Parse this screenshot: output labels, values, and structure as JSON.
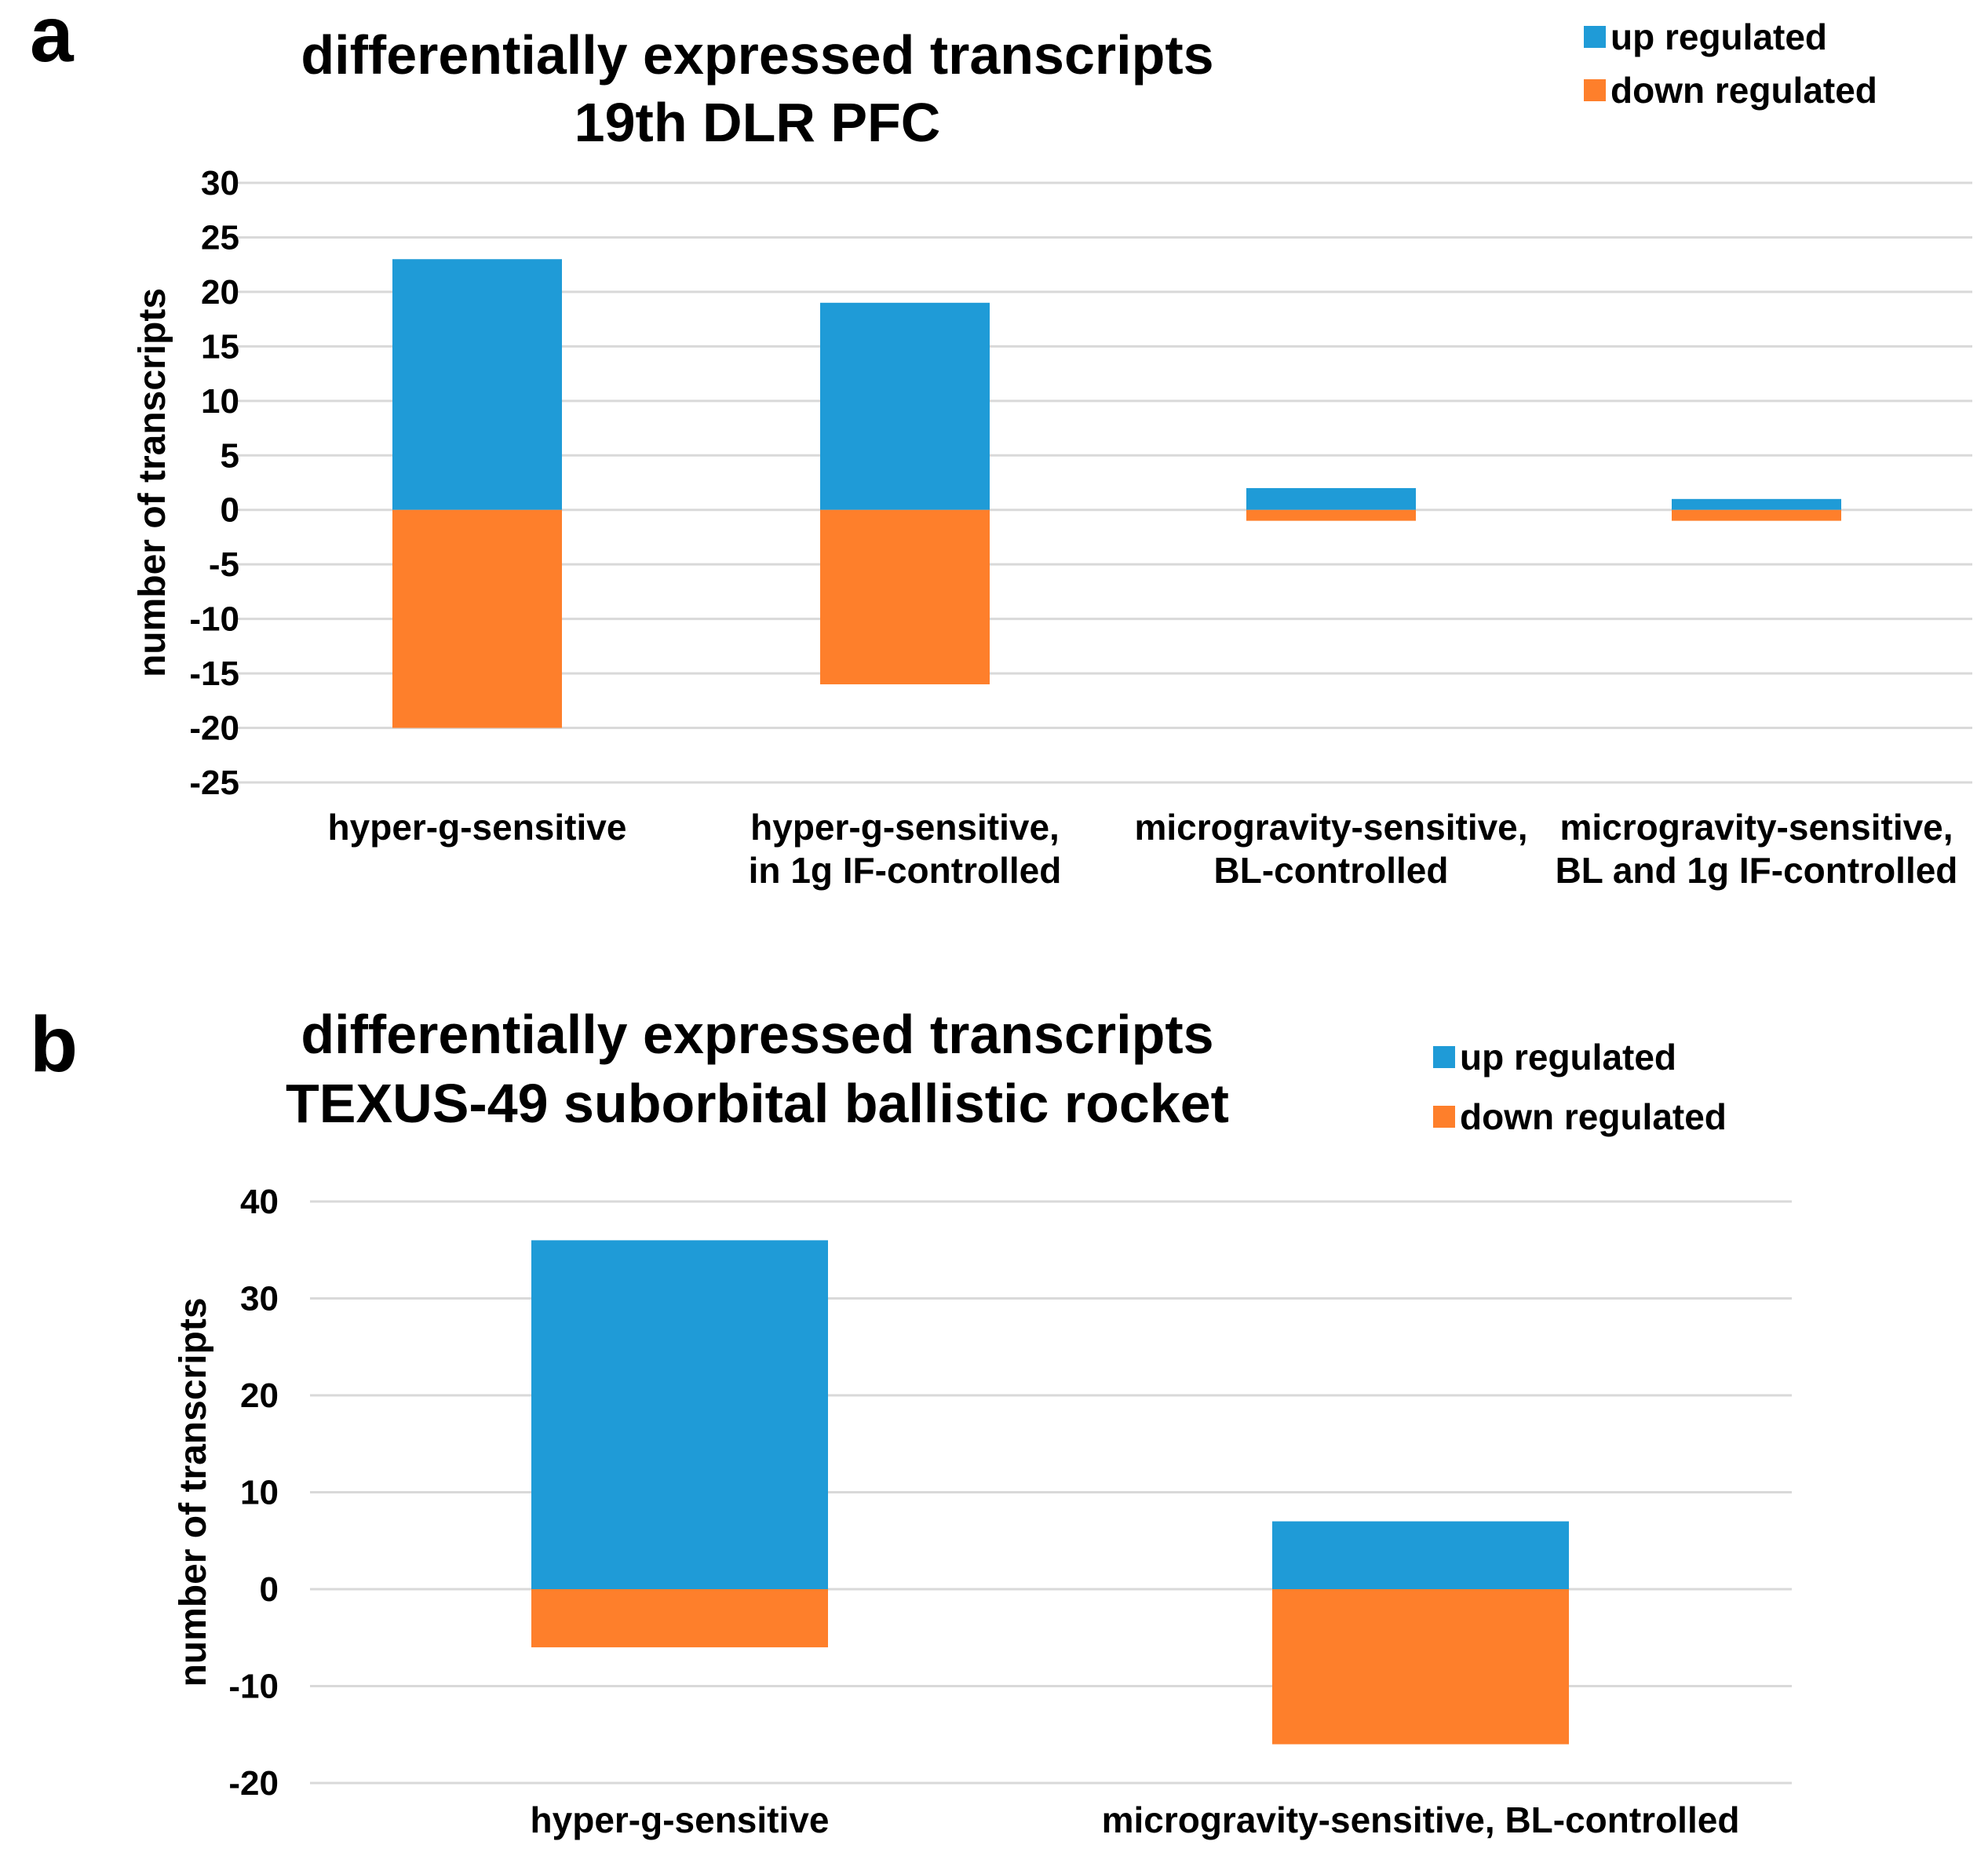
{
  "chart_data": [
    {
      "type": "bar",
      "stacked": true,
      "panel_label": "a",
      "title": [
        "differentially expressed transcripts",
        "19th DLR PFC"
      ],
      "ylabel": "number of transcripts",
      "xlabel": "",
      "ylim": [
        -25,
        30
      ],
      "yticks": [
        30,
        25,
        20,
        15,
        10,
        5,
        0,
        -5,
        -10,
        -15,
        -20,
        -25
      ],
      "grid": true,
      "legend_position": "top-right",
      "categories": [
        [
          "hyper-g-sensitive"
        ],
        [
          "hyper-g-sensitive,",
          "in 1g IF-controlled"
        ],
        [
          "microgravity-sensitive,",
          "BL-controlled"
        ],
        [
          "microgravity-sensitive,",
          "BL and 1g IF-controlled"
        ]
      ],
      "series": [
        {
          "name": "up regulated",
          "color": "#1f9bd7",
          "values": [
            23,
            19,
            2,
            1
          ]
        },
        {
          "name": "down regulated",
          "color": "#fe7f2b",
          "values": [
            -20,
            -16,
            -1,
            -1
          ]
        }
      ]
    },
    {
      "type": "bar",
      "stacked": true,
      "panel_label": "b",
      "title": [
        "differentially expressed transcripts",
        "TEXUS-49 suborbital ballistic rocket"
      ],
      "ylabel": "number of transcripts",
      "xlabel": "",
      "ylim": [
        -20,
        40
      ],
      "yticks": [
        40,
        30,
        20,
        10,
        0,
        -10,
        -20
      ],
      "grid": true,
      "legend_position": "top-right",
      "categories": [
        [
          "hyper-g-sensitive"
        ],
        [
          "microgravity-sensitive,  BL-controlled"
        ]
      ],
      "series": [
        {
          "name": "up regulated",
          "color": "#1f9bd7",
          "values": [
            36,
            7
          ]
        },
        {
          "name": "down regulated",
          "color": "#fe7f2b",
          "values": [
            -6,
            -16
          ]
        }
      ]
    }
  ]
}
